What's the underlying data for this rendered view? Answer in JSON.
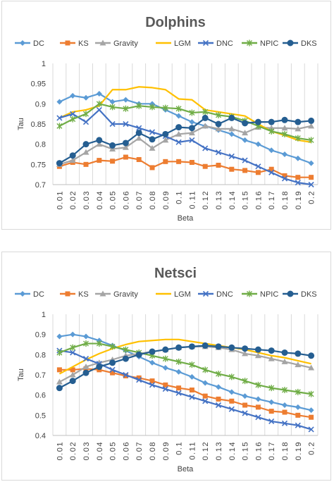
{
  "chart_data": [
    {
      "type": "line",
      "title": "Dolphins",
      "xlabel": "Beta",
      "ylabel": "Tau",
      "ylim": [
        0.7,
        1
      ],
      "yticks": [
        "0.7",
        "0.75",
        "0.8",
        "0.85",
        "0.9",
        "0.95",
        "1"
      ],
      "grid": "vertical",
      "legend_position": "top",
      "categories": [
        "0.01",
        "0.02",
        "0.03",
        "0.04",
        "0.05",
        "0.06",
        "0.07",
        "0.08",
        "0.09",
        "0.1",
        "0.11",
        "0.12",
        "0.13",
        "0.14",
        "0.15",
        "0.16",
        "0.17",
        "0.18",
        "0.19",
        "0.2"
      ],
      "series": [
        {
          "name": "DC",
          "color": "#5B9BD5",
          "marker": "diamond",
          "values": [
            0.905,
            0.92,
            0.915,
            0.925,
            0.905,
            0.91,
            0.9,
            0.9,
            0.885,
            0.87,
            0.855,
            0.845,
            0.835,
            0.825,
            0.81,
            0.8,
            0.785,
            0.775,
            0.765,
            0.753
          ]
        },
        {
          "name": "KS",
          "color": "#ED7D31",
          "marker": "square",
          "values": [
            0.745,
            0.755,
            0.75,
            0.76,
            0.758,
            0.768,
            0.762,
            0.742,
            0.757,
            0.757,
            0.755,
            0.745,
            0.748,
            0.738,
            0.735,
            0.73,
            0.738,
            0.722,
            0.718,
            0.718
          ]
        },
        {
          "name": "Gravity",
          "color": "#A5A5A5",
          "marker": "triangle",
          "values": [
            0.75,
            0.76,
            0.78,
            0.8,
            0.788,
            0.792,
            0.815,
            0.79,
            0.81,
            0.825,
            0.828,
            0.845,
            0.838,
            0.838,
            0.828,
            0.842,
            0.84,
            0.84,
            0.838,
            0.845
          ]
        },
        {
          "name": "LGM",
          "color": "#FFC000",
          "marker": "none",
          "values": [
            0.865,
            0.88,
            0.885,
            0.895,
            0.935,
            0.935,
            0.942,
            0.94,
            0.935,
            0.912,
            0.91,
            0.885,
            0.88,
            0.875,
            0.87,
            0.85,
            0.832,
            0.822,
            0.81,
            0.805
          ]
        },
        {
          "name": "DNC",
          "color": "#4472C4",
          "marker": "x",
          "values": [
            0.865,
            0.875,
            0.855,
            0.885,
            0.85,
            0.85,
            0.84,
            0.83,
            0.82,
            0.805,
            0.81,
            0.79,
            0.78,
            0.77,
            0.76,
            0.745,
            0.73,
            0.715,
            0.705,
            0.7
          ]
        },
        {
          "name": "NPIC",
          "color": "#70AD47",
          "marker": "star",
          "values": [
            0.845,
            0.862,
            0.875,
            0.9,
            0.892,
            0.888,
            0.895,
            0.892,
            0.89,
            0.888,
            0.878,
            0.88,
            0.872,
            0.868,
            0.858,
            0.845,
            0.832,
            0.825,
            0.815,
            0.81
          ]
        },
        {
          "name": "DKS",
          "color": "#255E91",
          "marker": "circle",
          "values": [
            0.753,
            0.772,
            0.8,
            0.81,
            0.797,
            0.803,
            0.828,
            0.812,
            0.825,
            0.842,
            0.84,
            0.865,
            0.85,
            0.865,
            0.852,
            0.855,
            0.855,
            0.86,
            0.855,
            0.858
          ]
        }
      ]
    },
    {
      "type": "line",
      "title": "Netsci",
      "xlabel": "Beta",
      "ylabel": "Tau",
      "ylim": [
        0.4,
        1
      ],
      "yticks": [
        "0.4",
        "0.5",
        "0.6",
        "0.7",
        "0.8",
        "0.9",
        "1"
      ],
      "grid": "vertical",
      "legend_position": "top",
      "categories": [
        "0.01",
        "0.02",
        "0.03",
        "0.04",
        "0.05",
        "0.06",
        "0.07",
        "0.08",
        "0.09",
        "0.1",
        "0.11",
        "0.12",
        "0.13",
        "0.14",
        "0.15",
        "0.16",
        "0.17",
        "0.18",
        "0.19",
        "0.2"
      ],
      "series": [
        {
          "name": "DC",
          "color": "#5B9BD5",
          "marker": "diamond",
          "values": [
            0.89,
            0.9,
            0.89,
            0.87,
            0.845,
            0.82,
            0.79,
            0.76,
            0.735,
            0.715,
            0.69,
            0.66,
            0.64,
            0.615,
            0.595,
            0.58,
            0.565,
            0.55,
            0.54,
            0.525
          ]
        },
        {
          "name": "KS",
          "color": "#ED7D31",
          "marker": "square",
          "values": [
            0.725,
            0.725,
            0.73,
            0.725,
            0.71,
            0.695,
            0.685,
            0.67,
            0.65,
            0.635,
            0.625,
            0.595,
            0.58,
            0.57,
            0.55,
            0.54,
            0.52,
            0.515,
            0.5,
            0.49
          ]
        },
        {
          "name": "Gravity",
          "color": "#A5A5A5",
          "marker": "triangle",
          "values": [
            0.665,
            0.7,
            0.74,
            0.76,
            0.775,
            0.795,
            0.805,
            0.815,
            0.825,
            0.835,
            0.84,
            0.84,
            0.835,
            0.825,
            0.805,
            0.795,
            0.78,
            0.765,
            0.75,
            0.735
          ]
        },
        {
          "name": "LGM",
          "color": "#FFC000",
          "marker": "none",
          "values": [
            0.705,
            0.74,
            0.775,
            0.805,
            0.83,
            0.85,
            0.865,
            0.87,
            0.875,
            0.875,
            0.865,
            0.855,
            0.845,
            0.835,
            0.825,
            0.81,
            0.795,
            0.785,
            0.77,
            0.755
          ]
        },
        {
          "name": "DNC",
          "color": "#4472C4",
          "marker": "x",
          "values": [
            0.82,
            0.81,
            0.78,
            0.755,
            0.725,
            0.7,
            0.675,
            0.65,
            0.63,
            0.61,
            0.59,
            0.57,
            0.55,
            0.53,
            0.51,
            0.49,
            0.47,
            0.46,
            0.45,
            0.43
          ]
        },
        {
          "name": "NPIC",
          "color": "#70AD47",
          "marker": "star",
          "values": [
            0.81,
            0.835,
            0.855,
            0.855,
            0.84,
            0.825,
            0.81,
            0.795,
            0.78,
            0.765,
            0.75,
            0.725,
            0.705,
            0.69,
            0.67,
            0.65,
            0.635,
            0.625,
            0.615,
            0.605
          ]
        },
        {
          "name": "DKS",
          "color": "#255E91",
          "marker": "circle",
          "values": [
            0.635,
            0.67,
            0.71,
            0.74,
            0.76,
            0.78,
            0.8,
            0.815,
            0.825,
            0.835,
            0.84,
            0.845,
            0.84,
            0.835,
            0.83,
            0.825,
            0.82,
            0.81,
            0.805,
            0.795
          ]
        }
      ]
    }
  ]
}
